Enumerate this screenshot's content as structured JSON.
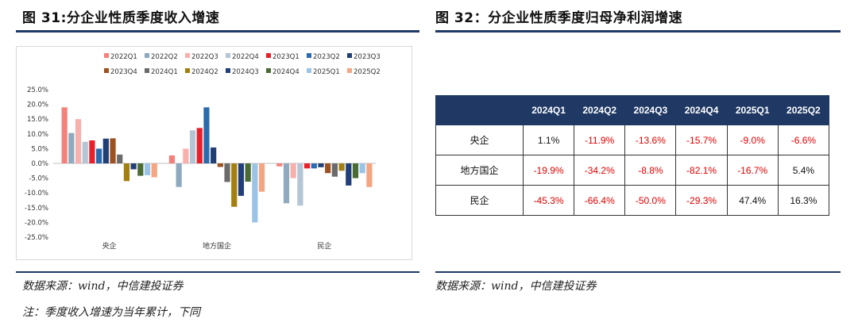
{
  "left": {
    "title": "图 31:分企业性质季度收入增速",
    "source": "数据来源：wind，中信建投证券",
    "note": "注：季度收入增速为当年累计，下同"
  },
  "right": {
    "title": "图 32：分企业性质季度归母净利润增速",
    "source": "数据来源：wind，中信建投证券"
  },
  "chart_data": {
    "type": "bar",
    "categories": [
      "央企",
      "地方国企",
      "民企"
    ],
    "ylim": [
      -25,
      25
    ],
    "yticks": [
      -25,
      -20,
      -15,
      -10,
      -5,
      0,
      5,
      10,
      15,
      20,
      25
    ],
    "ytick_labels": [
      "-25.0%",
      "-20.0%",
      "-15.0%",
      "-10.0%",
      "-5.0%",
      "0.0%",
      "5.0%",
      "10.0%",
      "15.0%",
      "20.0%",
      "25.0%"
    ],
    "legend_position": "top",
    "series": [
      {
        "name": "2022Q1",
        "color": "#f4807b",
        "values": [
          19.0,
          2.7,
          -1.0
        ]
      },
      {
        "name": "2022Q2",
        "color": "#8fa9bf",
        "values": [
          10.3,
          -8.0,
          -13.5
        ]
      },
      {
        "name": "2022Q3",
        "color": "#f8b0ad",
        "values": [
          15.0,
          5.0,
          -5.0
        ]
      },
      {
        "name": "2022Q4",
        "color": "#b4c5d6",
        "values": [
          7.3,
          11.2,
          -14.3
        ]
      },
      {
        "name": "2023Q1",
        "color": "#e8202b",
        "values": [
          7.8,
          12.0,
          -1.7
        ]
      },
      {
        "name": "2023Q2",
        "color": "#2b6bad",
        "values": [
          5.0,
          19.0,
          -1.7
        ]
      },
      {
        "name": "2023Q3",
        "color": "#1f3f75",
        "values": [
          8.4,
          5.4,
          -1.3
        ]
      },
      {
        "name": "2023Q4",
        "color": "#9c5120",
        "values": [
          8.5,
          -1.2,
          -3.3
        ]
      },
      {
        "name": "2024Q1",
        "color": "#6b6b6b",
        "values": [
          3.0,
          -6.3,
          -4.5
        ]
      },
      {
        "name": "2024Q2",
        "color": "#a27f10",
        "values": [
          -6.0,
          -14.7,
          -2.5
        ]
      },
      {
        "name": "2024Q3",
        "color": "#223f7a",
        "values": [
          -2.0,
          -11.0,
          -7.5
        ]
      },
      {
        "name": "2024Q4",
        "color": "#4a6b34",
        "values": [
          -4.2,
          -6.2,
          -5.0
        ]
      },
      {
        "name": "2025Q1",
        "color": "#9bc3e6",
        "values": [
          -4.0,
          -20.0,
          -3.3
        ]
      },
      {
        "name": "2025Q2",
        "color": "#f4a582",
        "values": [
          -4.7,
          -9.6,
          -8.0
        ]
      }
    ]
  },
  "table": {
    "headers": [
      "2024Q1",
      "2024Q2",
      "2024Q3",
      "2024Q4",
      "2025Q1",
      "2025Q2"
    ],
    "rows": [
      {
        "name": "央企",
        "cells": [
          "1.1%",
          "-11.9%",
          "-13.6%",
          "-15.7%",
          "-9.0%",
          "-6.6%"
        ]
      },
      {
        "name": "地方国企",
        "cells": [
          "-19.9%",
          "-34.2%",
          "-8.8%",
          "-82.1%",
          "-16.7%",
          "5.4%"
        ]
      },
      {
        "name": "民企",
        "cells": [
          "-45.3%",
          "-66.4%",
          "-50.0%",
          "-29.3%",
          "47.4%",
          "16.3%"
        ]
      }
    ]
  },
  "colors": {
    "navy": "#1f3864",
    "negative": "#e00000"
  }
}
